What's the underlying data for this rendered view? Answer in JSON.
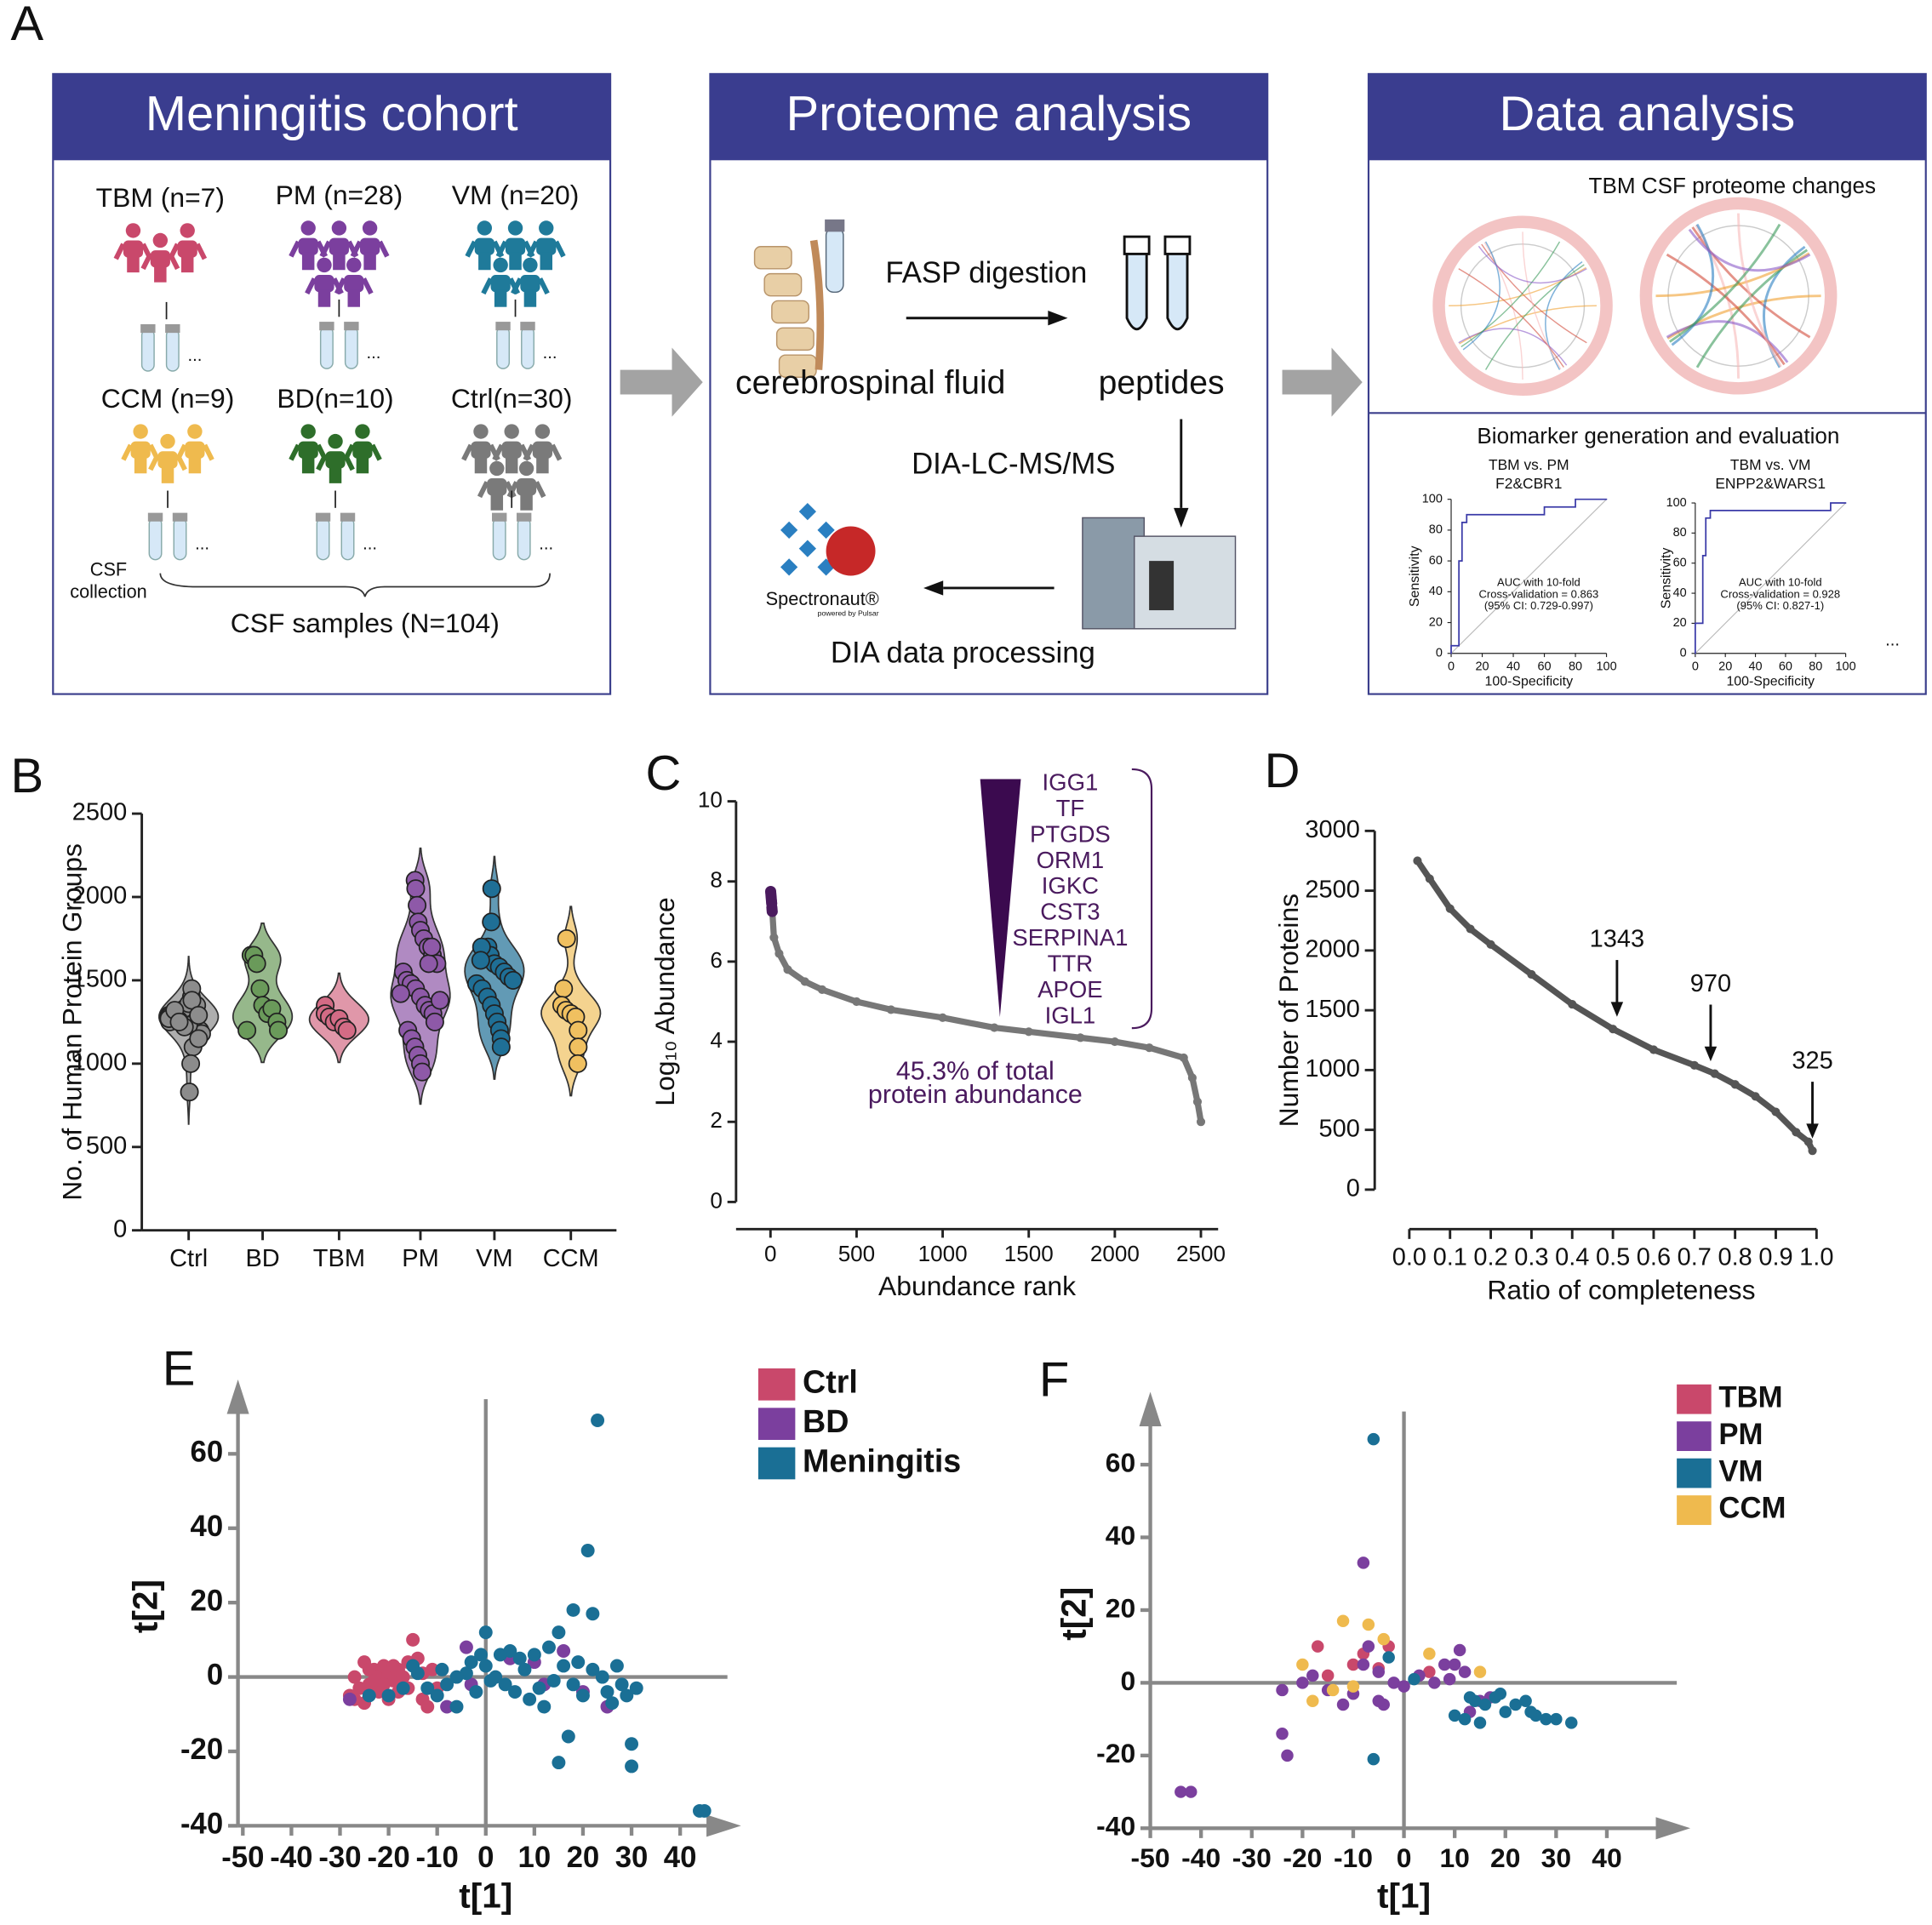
{
  "diagram": {
    "label": "A",
    "boxes": [
      {
        "title": "Meningitis cohort"
      },
      {
        "title": "Proteome analysis"
      },
      {
        "title": "Data analysis"
      }
    ],
    "cohort": {
      "groups": [
        {
          "label": "TBM (n=7)",
          "color": "#c9486b"
        },
        {
          "label": "PM (n=28)",
          "color": "#7b3f9e"
        },
        {
          "label": "VM (n=20)",
          "color": "#1f7a9a"
        },
        {
          "label": "CCM (n=9)",
          "color": "#efba4e"
        },
        {
          "label": "BD(n=10)",
          "color": "#2e6e2a"
        },
        {
          "label": "Ctrl(n=30)",
          "color": "#7a7a7a"
        }
      ],
      "ellipsis": "...",
      "csf_collection": [
        "CSF",
        "collection"
      ],
      "samples": "CSF samples (N=104)"
    },
    "proteome": {
      "fasp": "FASP digestion",
      "csf": "cerebrospinal fluid",
      "peptides": "peptides",
      "dia": "DIA-LC-MS/MS",
      "processing": "DIA data processing",
      "logo": "Spectronaut®",
      "logo_sub": "powered by Pulsar"
    },
    "data_analysis": {
      "changes_title": "TBM CSF proteome changes",
      "biomarker_title": "Biomarker generation and evaluation",
      "more": "..."
    }
  },
  "chart_data": [
    {
      "type": "violin",
      "label": "B",
      "ylabel": "No. of Human Protein Groups",
      "categories": [
        "Ctrl",
        "BD",
        "TBM",
        "PM",
        "VM",
        "CCM"
      ],
      "colors": [
        "#8c8c8c",
        "#6a9a5a",
        "#d36b85",
        "#8e59a8",
        "#1f6f96",
        "#f0c060"
      ],
      "ylim": [
        0,
        2500
      ],
      "yticks": [
        0,
        500,
        1000,
        1500,
        2000,
        2500
      ],
      "values": [
        [
          1250,
          1280,
          1300,
          1320,
          1260,
          1240,
          1350,
          1200,
          1180,
          1290,
          1310,
          1270,
          1330,
          1230,
          1400,
          1450,
          1100,
          1150,
          1280,
          1300,
          1260,
          1220,
          1360,
          1380,
          1290,
          830,
          1000,
          1270,
          1320,
          1250
        ],
        [
          1650,
          1650,
          1600,
          1450,
          1350,
          1300,
          1330,
          1250,
          1200,
          1200
        ],
        [
          1350,
          1300,
          1280,
          1250,
          1270,
          1220,
          1200
        ],
        [
          2100,
          2050,
          1950,
          1850,
          1800,
          1750,
          1700,
          1650,
          1600,
          1550,
          1500,
          1480,
          1450,
          1400,
          1350,
          1320,
          1300,
          1250,
          1200,
          1150,
          1100,
          1050,
          1000,
          950,
          1600,
          1700,
          1380,
          1420
        ],
        [
          2050,
          1850,
          1700,
          1650,
          1600,
          1580,
          1550,
          1520,
          1500,
          1480,
          1450,
          1400,
          1350,
          1300,
          1250,
          1200,
          1150,
          1100,
          1700,
          1620
        ],
        [
          1750,
          1450,
          1350,
          1320,
          1300,
          1280,
          1200,
          1100,
          1000
        ]
      ]
    },
    {
      "type": "line",
      "label": "C",
      "xlabel": "Abundance rank",
      "ylabel": "Log₁₀ Abundance",
      "xlim": [
        -200,
        2600
      ],
      "ylim": [
        0,
        10
      ],
      "xticks": [
        0,
        500,
        1000,
        1500,
        2000,
        2500
      ],
      "yticks": [
        0,
        2,
        4,
        6,
        8,
        10
      ],
      "markers": true,
      "series": [
        {
          "color": "#777777",
          "x": [
            1,
            5,
            10,
            20,
            50,
            100,
            200,
            300,
            500,
            700,
            1000,
            1300,
            1500,
            1800,
            2000,
            2200,
            2400,
            2450,
            2480,
            2500
          ],
          "values": [
            7.7,
            7.6,
            7.3,
            6.6,
            6.2,
            5.8,
            5.5,
            5.3,
            5.0,
            4.8,
            4.6,
            4.35,
            4.25,
            4.1,
            4.0,
            3.85,
            3.6,
            3.1,
            2.5,
            2.0
          ]
        },
        {
          "color": "#4a1a5e",
          "x": [
            1,
            2,
            3,
            4,
            5,
            6,
            7,
            8,
            9,
            10
          ],
          "values": [
            7.75,
            7.7,
            7.65,
            7.6,
            7.55,
            7.5,
            7.45,
            7.35,
            7.3,
            7.25
          ]
        }
      ],
      "annotations": [
        "IGG1",
        "TF",
        "PTGDS",
        "ORM1",
        "IGKC",
        "CST3",
        "SERPINA1",
        "TTR",
        "APOE",
        "IGL1"
      ],
      "note": [
        "45.3% of total",
        "protein abundance"
      ]
    },
    {
      "type": "line",
      "label": "D",
      "xlabel": "Ratio of completeness",
      "ylabel": "Number of Proteins",
      "xlim": [
        -0.085,
        1.005
      ],
      "ylim": [
        0,
        3000
      ],
      "xticks": [
        {
          "value": 0,
          "label": "0.0"
        },
        0.1,
        0.2,
        0.3,
        0.4,
        0.5,
        0.6,
        0.7,
        0.8,
        0.9,
        {
          "value": 1,
          "label": "1.0"
        }
      ],
      "yticks": [
        0,
        500,
        1000,
        1500,
        2000,
        2500,
        3000
      ],
      "markers": true,
      "series": [
        {
          "color": "#555555",
          "x": [
            0.02,
            0.05,
            0.1,
            0.15,
            0.2,
            0.3,
            0.4,
            0.5,
            0.6,
            0.7,
            0.75,
            0.8,
            0.85,
            0.9,
            0.95,
            0.98,
            0.99
          ],
          "values": [
            2750,
            2600,
            2350,
            2180,
            2050,
            1800,
            1550,
            1343,
            1170,
            1040,
            970,
            880,
            780,
            650,
            480,
            400,
            325
          ]
        }
      ],
      "annotations": [
        {
          "x": 0.51,
          "y": 1343
        },
        {
          "x": 0.74,
          "y": 970
        },
        {
          "x": 0.99,
          "y": 325
        }
      ]
    },
    {
      "type": "scatter",
      "label": "E",
      "xlabel": "t[1]",
      "ylabel": "t[2]",
      "xlim": [
        -51,
        51
      ],
      "ylim": [
        -40,
        78
      ],
      "xticks": [
        -50,
        -40,
        -30,
        -20,
        -10,
        0,
        10,
        20,
        30,
        40
      ],
      "yticks": [
        -40,
        -20,
        0,
        20,
        40,
        60
      ],
      "series": [
        {
          "name": "Ctrl",
          "color": "#c9486b",
          "x": [
            -28,
            -27,
            -26,
            -25,
            -24,
            -23,
            -22,
            -21,
            -20,
            -19,
            -18,
            -17,
            -16,
            -15,
            -14,
            -13,
            -12,
            -11,
            -22,
            -20,
            -25,
            -18,
            -24,
            -21,
            -16,
            -19,
            -13,
            -10,
            -27,
            -23
          ],
          "values": [
            -5,
            0,
            -3,
            4,
            -2,
            2,
            0,
            3,
            1,
            -1,
            2,
            0,
            -3,
            10,
            5,
            -6,
            -8,
            2,
            -4,
            -6,
            -7,
            -4,
            2,
            -2,
            4,
            3,
            1,
            -3,
            -6,
            -1
          ]
        },
        {
          "name": "BD",
          "color": "#7b3f9e",
          "x": [
            -28,
            -8,
            -3,
            -4,
            5,
            10,
            16,
            20,
            25,
            12
          ],
          "values": [
            -6,
            -8,
            -2,
            8,
            5,
            4,
            7,
            -4,
            -8,
            -2
          ]
        },
        {
          "name": "Meningitis",
          "color": "#1a6f95",
          "x": [
            23,
            21,
            22,
            18,
            15,
            13,
            10,
            7,
            5,
            3,
            0,
            0,
            2,
            4,
            6,
            8,
            9,
            11,
            12,
            14,
            15,
            17,
            18,
            19,
            20,
            22,
            24,
            25,
            26,
            28,
            29,
            30,
            30,
            31,
            -2,
            -4,
            -6,
            -8,
            -10,
            -12,
            -14,
            -15,
            -17,
            -20,
            -24,
            -6,
            -3,
            1,
            44,
            45,
            27,
            16,
            -9,
            -1
          ],
          "values": [
            69,
            34,
            17,
            18,
            12,
            8,
            6,
            5,
            7,
            6,
            12,
            3,
            0,
            -2,
            -4,
            2,
            -6,
            -3,
            -8,
            -1,
            -23,
            -16,
            -2,
            4,
            -5,
            2,
            0,
            -4,
            -7,
            -2,
            -5,
            -18,
            -24,
            -3,
            -4,
            1,
            0,
            -2,
            -5,
            -3,
            1,
            3,
            -3,
            -5,
            -5,
            -8,
            4,
            -1,
            -36,
            -36,
            3,
            3,
            2,
            6
          ]
        }
      ]
    },
    {
      "type": "scatter",
      "label": "F",
      "xlabel": "t[1]",
      "ylabel": "t[2]",
      "xlim": [
        -50,
        55
      ],
      "ylim": [
        -40,
        78
      ],
      "xticks": [
        -50,
        -40,
        -30,
        -20,
        -10,
        0,
        10,
        20,
        30,
        40
      ],
      "yticks": [
        -40,
        -20,
        0,
        20,
        40,
        60
      ],
      "series": [
        {
          "name": "TBM",
          "color": "#c9486b",
          "x": [
            -17,
            -10,
            -5,
            -8,
            -15,
            5,
            -3
          ],
          "values": [
            10,
            5,
            4,
            8,
            2,
            3,
            10
          ]
        },
        {
          "name": "PM",
          "color": "#7b3f9e",
          "x": [
            -44,
            -42,
            -24,
            -24,
            -23,
            -18,
            -15,
            -8,
            -7,
            -5,
            -4,
            -10,
            -2,
            3,
            8,
            10,
            11,
            12,
            15,
            17,
            -5,
            0,
            -12,
            -20,
            13,
            6,
            -8,
            9
          ],
          "values": [
            -30,
            -30,
            -2,
            -14,
            -20,
            2,
            -2,
            33,
            10,
            3,
            -6,
            -3,
            0,
            2,
            5,
            5,
            9,
            3,
            -5,
            -4,
            -5,
            -1,
            -6,
            0,
            -8,
            0,
            5,
            1
          ]
        },
        {
          "name": "VM",
          "color": "#1a6f95",
          "x": [
            -6,
            -6,
            10,
            12,
            14,
            16,
            18,
            20,
            22,
            24,
            26,
            28,
            30,
            33,
            15,
            19,
            -3,
            2,
            25,
            13
          ],
          "values": [
            67,
            -21,
            -9,
            -10,
            -5,
            -6,
            -4,
            -8,
            -6,
            -5,
            -9,
            -10,
            -10,
            -11,
            -11,
            -3,
            7,
            1,
            -8,
            -4
          ]
        },
        {
          "name": "CCM",
          "color": "#efba4e",
          "x": [
            -12,
            -7,
            -4,
            -20,
            -18,
            -10,
            5,
            15,
            -14
          ],
          "values": [
            17,
            16,
            12,
            5,
            -5,
            -1,
            8,
            3,
            -2
          ]
        }
      ]
    },
    {
      "type": "line",
      "title": "TBM vs. PM",
      "subtitle": "F2&CBR1",
      "xlabel": "100-Specificity",
      "ylabel": "Sensitivity",
      "xlim": [
        0,
        100
      ],
      "ylim": [
        0,
        100
      ],
      "xticks": [
        0,
        20,
        40,
        60,
        80,
        100
      ],
      "yticks": [
        0,
        20,
        40,
        60,
        80,
        100
      ],
      "series": [
        {
          "color": "#3a3aa8",
          "x": [
            0,
            0,
            5,
            5,
            7,
            7,
            10,
            10,
            60,
            60,
            80,
            80,
            100
          ],
          "values": [
            0,
            5,
            5,
            60,
            60,
            85,
            85,
            90,
            90,
            95,
            95,
            100,
            100
          ]
        }
      ],
      "annotations": [
        "AUC with 10-fold",
        "Cross-validation = 0.863",
        "(95% CI: 0.729-0.997)"
      ]
    },
    {
      "type": "line",
      "title": "TBM vs. VM",
      "subtitle": "ENPP2&WARS1",
      "xlabel": "100-Specificity",
      "ylabel": "Sensitivity",
      "xlim": [
        0,
        100
      ],
      "ylim": [
        0,
        100
      ],
      "xticks": [
        0,
        20,
        40,
        60,
        80,
        100
      ],
      "yticks": [
        0,
        20,
        40,
        60,
        80,
        100
      ],
      "series": [
        {
          "color": "#3a3aa8",
          "x": [
            0,
            0,
            5,
            5,
            7,
            7,
            10,
            10,
            90,
            90,
            100
          ],
          "values": [
            0,
            20,
            20,
            65,
            65,
            90,
            90,
            95,
            95,
            100,
            100
          ]
        }
      ],
      "annotations": [
        "AUC with 10-fold",
        "Cross-validation = 0.928",
        "(95% CI: 0.827-1)"
      ]
    }
  ]
}
